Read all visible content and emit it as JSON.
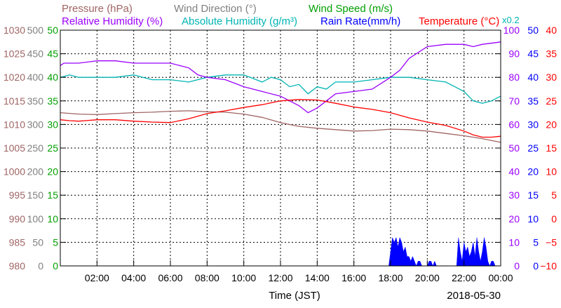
{
  "chart_data": {
    "type": "line",
    "date_label": "2018-05-30",
    "xlabel": "Time (JST)",
    "x_ticks": [
      "02:00",
      "04:00",
      "06:00",
      "08:00",
      "10:00",
      "12:00",
      "14:00",
      "16:00",
      "18:00",
      "20:00",
      "22:00",
      "00:00"
    ],
    "x_range_hours": [
      0,
      24
    ],
    "grid": true,
    "multiplier_label": "x0.2",
    "legend_rows": [
      [
        {
          "text": "Pressure (hPa)",
          "color": "#a06464"
        },
        {
          "text": "Wind Direction (°)",
          "color": "#808080"
        },
        {
          "text": "Wind Speed (m/s)",
          "color": "#00a000"
        }
      ],
      [
        {
          "text": "Relative Humidity (%)",
          "color": "#9b00ff"
        },
        {
          "text": "Absolute Humidity (g/m³)",
          "color": "#00b4b4"
        },
        {
          "text": "Rain Rate(mm/h)",
          "color": "#0000ff"
        },
        {
          "text": "Temperature (°C)",
          "color": "#ff0000"
        }
      ]
    ],
    "axes": {
      "pressure": {
        "color": "#a06464",
        "range": [
          980,
          1030
        ],
        "ticks": [
          "980",
          "985",
          "990",
          "995",
          "1000",
          "1005",
          "1010",
          "1015",
          "1020",
          "1025",
          "1030"
        ]
      },
      "wind_direction": {
        "color": "#808080",
        "range": [
          0,
          500
        ],
        "ticks": [
          "0",
          "50",
          "100",
          "150",
          "200",
          "250",
          "300",
          "350",
          "400",
          "450",
          "500"
        ]
      },
      "wind_speed": {
        "color": "#00a000",
        "range": [
          0,
          50
        ],
        "ticks": [
          "0",
          "5",
          "10",
          "15",
          "20",
          "25",
          "30",
          "35",
          "40",
          "45",
          "50"
        ]
      },
      "relative_humidity": {
        "color": "#9b00ff",
        "range": [
          0,
          100
        ],
        "ticks": [
          "0",
          "10",
          "20",
          "30",
          "40",
          "50",
          "60",
          "70",
          "80",
          "90",
          "100"
        ]
      },
      "rain_rate": {
        "color": "#0000ff",
        "range": [
          0,
          50
        ],
        "ticks": [
          "0",
          "5",
          "10",
          "15",
          "20",
          "25",
          "30",
          "35",
          "40",
          "45",
          "50"
        ]
      },
      "temperature": {
        "color": "#ff0000",
        "range": [
          -10,
          40
        ],
        "ticks": [
          "−10",
          "−5",
          "0",
          "5",
          "10",
          "15",
          "20",
          "25",
          "30",
          "35",
          "40"
        ]
      }
    },
    "series": [
      {
        "name": "Pressure (hPa)",
        "color": "#a06464",
        "axis": "pressure",
        "x": [
          0,
          1,
          2,
          3,
          4,
          5,
          6,
          7,
          8,
          9,
          10,
          11,
          12,
          13,
          14,
          15,
          16,
          17,
          18,
          19,
          20,
          21,
          22,
          23,
          24
        ],
        "y": [
          1012.5,
          1012.2,
          1012.1,
          1012.3,
          1012.5,
          1012.6,
          1012.8,
          1012.9,
          1012.7,
          1012.6,
          1012.2,
          1011.5,
          1010.4,
          1009.6,
          1009.2,
          1008.9,
          1008.6,
          1008.7,
          1009.0,
          1008.9,
          1008.6,
          1008.1,
          1007.6,
          1007.0,
          1006.2
        ]
      },
      {
        "name": "Absolute Humidity (g/m³)",
        "color": "#00b4b4",
        "axis": "relative_humidity",
        "x": [
          0,
          0.5,
          1,
          2,
          3,
          4,
          5,
          6,
          7,
          8,
          9,
          10,
          11,
          11.5,
          12,
          12.5,
          13,
          13.5,
          14,
          14.5,
          15,
          16,
          17,
          18,
          19,
          20,
          21,
          21.5,
          22,
          22.5,
          23,
          23.5,
          24
        ],
        "y": [
          80,
          81,
          80,
          80,
          80,
          81,
          79,
          79,
          78,
          80,
          81,
          81,
          78,
          80,
          79,
          76,
          77,
          73,
          76,
          75,
          78,
          78,
          79,
          80,
          80,
          79,
          78,
          76,
          74,
          70,
          69,
          70,
          72
        ]
      },
      {
        "name": "Relative Humidity (%)",
        "color": "#9b00ff",
        "axis": "relative_humidity",
        "x": [
          0,
          0.2,
          1,
          2,
          3,
          4,
          5,
          6,
          7,
          7.5,
          8,
          9,
          10,
          11,
          12,
          12.5,
          13,
          13.5,
          14,
          14.5,
          15,
          16,
          17,
          18,
          18.5,
          19,
          20,
          21,
          21.5,
          22,
          22.5,
          23,
          24
        ],
        "y": [
          85,
          86,
          86,
          87,
          87,
          86,
          86,
          86,
          84,
          81,
          80,
          79,
          76,
          74,
          72,
          70,
          68,
          65,
          67,
          70,
          73,
          74,
          75,
          80,
          83,
          88,
          93,
          94,
          94,
          94,
          93,
          94,
          95
        ]
      },
      {
        "name": "Temperature (°C)",
        "color": "#ff0000",
        "axis": "temperature",
        "x": [
          0,
          0.5,
          1,
          2,
          3,
          4,
          5,
          6,
          7,
          8,
          9,
          10,
          11,
          12,
          13,
          14,
          15,
          16,
          17,
          18,
          19,
          20,
          21,
          22,
          22.5,
          23,
          23.5,
          24
        ],
        "y": [
          21.0,
          20.8,
          20.7,
          21.0,
          21.0,
          20.7,
          20.5,
          20.4,
          21.2,
          22.3,
          22.9,
          23.6,
          24.2,
          25.0,
          25.3,
          25.2,
          24.5,
          23.7,
          23.2,
          22.5,
          21.4,
          20.5,
          19.8,
          18.6,
          17.8,
          17.3,
          17.3,
          17.5
        ]
      },
      {
        "name": "Rain Rate(mm/h)",
        "color": "#0000ff",
        "axis": "rain_rate",
        "x": [
          17.9,
          18.0,
          18.1,
          18.2,
          18.3,
          18.4,
          18.5,
          18.6,
          18.7,
          18.8,
          18.9,
          19.0,
          19.1,
          19.2,
          19.3,
          19.4,
          19.5,
          19.6,
          19.7,
          19.8,
          19.9,
          20.0,
          20.1,
          20.2,
          20.3,
          20.4,
          20.5,
          20.6,
          20.7,
          20.8,
          20.9,
          21.0,
          21.1,
          21.2,
          21.3,
          21.4,
          21.5,
          21.6,
          21.7,
          21.8,
          21.9,
          22.0,
          22.1,
          22.2,
          22.3,
          22.4,
          22.5,
          22.6,
          22.7,
          22.8,
          22.9,
          23.0,
          23.1,
          23.2,
          23.3,
          23.4,
          23.5,
          23.6,
          23.7,
          23.8,
          23.9,
          24.0
        ],
        "y": [
          0,
          3,
          6,
          5,
          6,
          4,
          6,
          5,
          3,
          4,
          2,
          2,
          1,
          2,
          1,
          0,
          1,
          1,
          0,
          0,
          0,
          0,
          1,
          1,
          0,
          1,
          0,
          0,
          0,
          0,
          0,
          0,
          0,
          0,
          0,
          0,
          0,
          0,
          6,
          3,
          1,
          5,
          3,
          4,
          2,
          3,
          5,
          2,
          6,
          3,
          1,
          3,
          6,
          4,
          1,
          0,
          1,
          1,
          0,
          0,
          0,
          0
        ]
      }
    ]
  }
}
